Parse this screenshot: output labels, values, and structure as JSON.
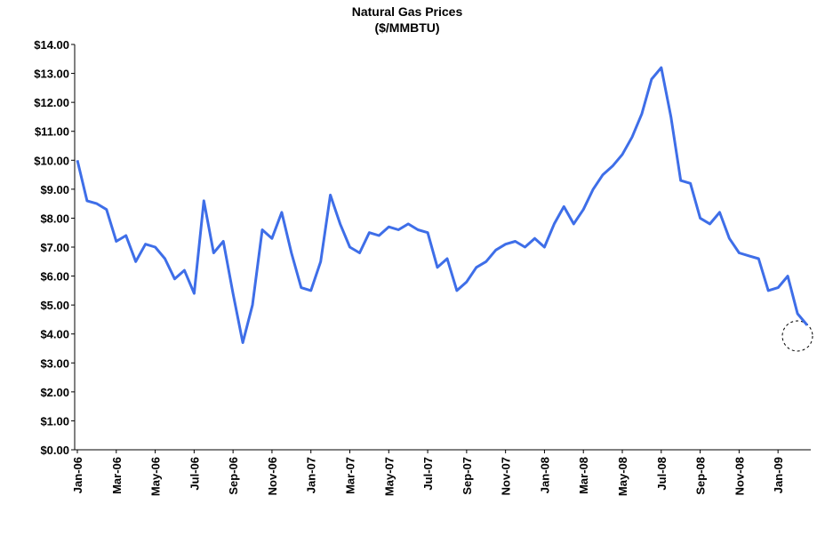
{
  "chart_data": {
    "type": "line",
    "title": "Natural Gas Prices",
    "subtitle": "($/MMBTU)",
    "color": "#3e6ee8",
    "categories": [
      "Jan-06",
      null,
      null,
      null,
      "Mar-06",
      null,
      null,
      null,
      "May-06",
      null,
      null,
      null,
      "Jul-06",
      null,
      null,
      null,
      "Sep-06",
      null,
      null,
      null,
      "Nov-06",
      null,
      null,
      null,
      "Jan-07",
      null,
      null,
      null,
      "Mar-07",
      null,
      null,
      null,
      "May-07",
      null,
      null,
      null,
      "Jul-07",
      null,
      null,
      null,
      "Sep-07",
      null,
      null,
      null,
      "Nov-07",
      null,
      null,
      null,
      "Jan-08",
      null,
      null,
      null,
      "Mar-08",
      null,
      null,
      null,
      "May-08",
      null,
      null,
      null,
      "Jul-08",
      null,
      null,
      null,
      "Sep-08",
      null,
      null,
      null,
      "Nov-08",
      null,
      null,
      null,
      "Jan-09",
      null,
      null,
      null
    ],
    "values": [
      10.0,
      8.6,
      8.5,
      8.3,
      7.2,
      7.4,
      6.5,
      7.1,
      7.0,
      6.6,
      5.9,
      6.2,
      5.4,
      8.6,
      6.8,
      7.2,
      5.4,
      3.7,
      5.0,
      7.6,
      7.3,
      8.2,
      6.8,
      5.6,
      5.5,
      6.5,
      8.8,
      7.8,
      7.0,
      6.8,
      7.5,
      7.4,
      7.7,
      7.6,
      7.8,
      7.6,
      7.5,
      6.3,
      6.6,
      5.5,
      5.8,
      6.3,
      6.5,
      6.9,
      7.1,
      7.2,
      7.0,
      7.3,
      7.0,
      7.8,
      8.4,
      7.8,
      8.3,
      9.0,
      9.5,
      9.8,
      10.2,
      10.8,
      11.6,
      12.8,
      13.2,
      11.5,
      9.3,
      9.2,
      8.0,
      7.8,
      8.2,
      7.3,
      6.8,
      6.7,
      6.6,
      5.5,
      5.6,
      6.0,
      4.7,
      4.3
    ],
    "ylim": [
      0,
      14
    ],
    "yticks": [
      {
        "value": 0,
        "label": "$0.00"
      },
      {
        "value": 1,
        "label": "$1.00"
      },
      {
        "value": 2,
        "label": "$2.00"
      },
      {
        "value": 3,
        "label": "$3.00"
      },
      {
        "value": 4,
        "label": "$4.00"
      },
      {
        "value": 5,
        "label": "$5.00"
      },
      {
        "value": 6,
        "label": "$6.00"
      },
      {
        "value": 7,
        "label": "$7.00"
      },
      {
        "value": 8,
        "label": "$8.00"
      },
      {
        "value": 9,
        "label": "$9.00"
      },
      {
        "value": 10,
        "label": "$10.00"
      },
      {
        "value": 11,
        "label": "$11.00"
      },
      {
        "value": 12,
        "label": "$12.00"
      },
      {
        "value": 13,
        "label": "$13.00"
      },
      {
        "value": 14,
        "label": "$14.00"
      }
    ],
    "grid": false
  }
}
